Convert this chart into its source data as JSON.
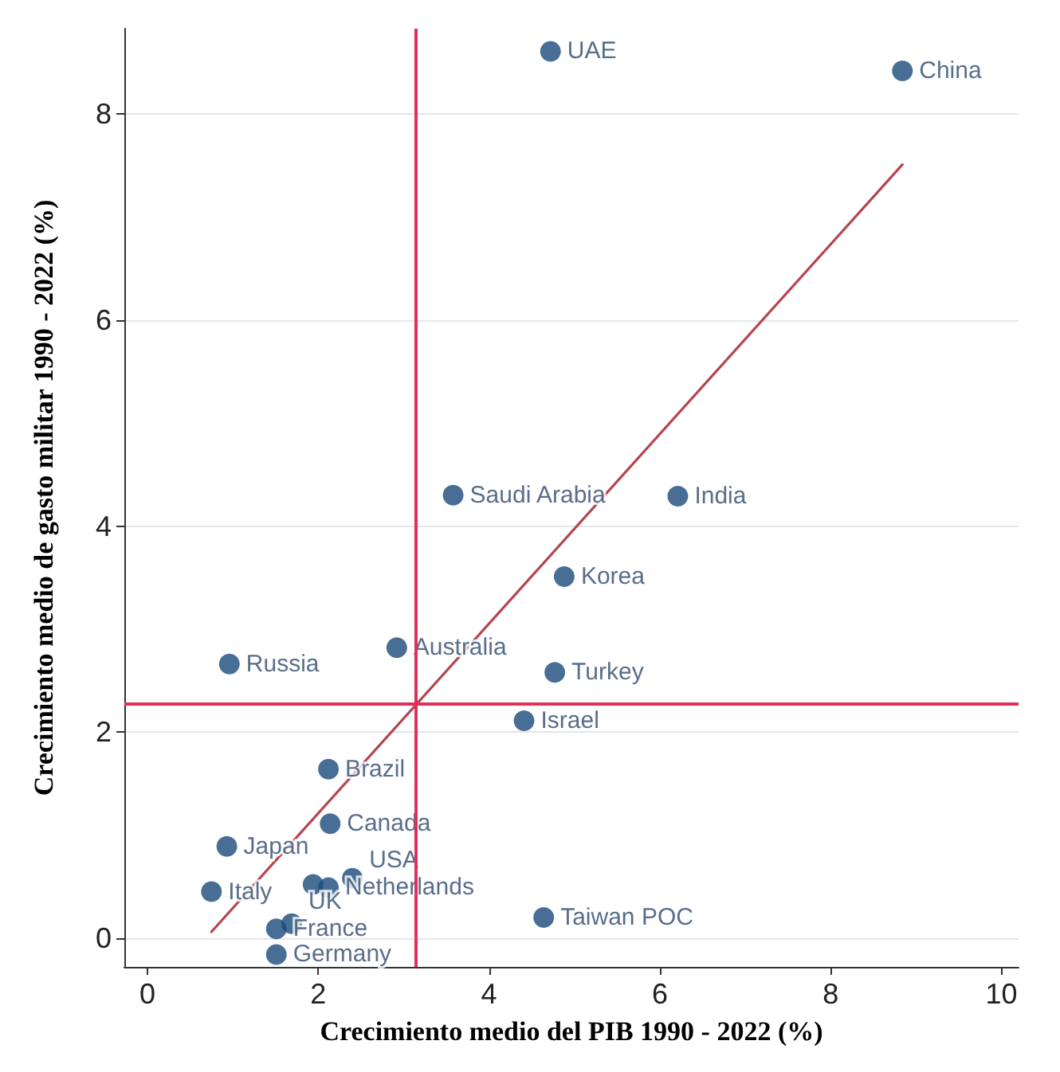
{
  "chart_data": {
    "type": "scatter",
    "xlabel": "Crecimiento medio del PIB 1990 - 2022 (%)",
    "ylabel": "Crecimiento medio de gasto militar 1990 - 2022 (%)",
    "xlim": [
      -0.27,
      10.2
    ],
    "ylim": [
      -0.28,
      8.83
    ],
    "xticks": [
      0,
      2,
      4,
      6,
      8,
      10
    ],
    "yticks": [
      0,
      2,
      4,
      6,
      8
    ],
    "grid": "y",
    "legend": false,
    "marker": "circle",
    "ref_lines": [
      {
        "axis": "x",
        "value": 3.15,
        "color": "#e0305a"
      },
      {
        "axis": "y",
        "value": 2.27,
        "color": "#e0305a"
      }
    ],
    "series": [
      {
        "name": "UAE",
        "color": "#1a4a7a",
        "x": [
          4.72
        ],
        "values": [
          8.61
        ]
      },
      {
        "name": "China",
        "color": "#1a4a7a",
        "x": [
          8.84
        ],
        "values": [
          8.42
        ]
      },
      {
        "name": "Saudi Arabia",
        "color": "#1a4a7a",
        "x": [
          3.58
        ],
        "values": [
          4.3
        ]
      },
      {
        "name": "India",
        "color": "#1a4a7a",
        "x": [
          6.21
        ],
        "values": [
          4.29
        ]
      },
      {
        "name": "Korea",
        "color": "#1a4a7a",
        "x": [
          4.88
        ],
        "values": [
          3.51
        ]
      },
      {
        "name": "Australia",
        "color": "#1a4a7a",
        "x": [
          2.92
        ],
        "values": [
          2.82
        ]
      },
      {
        "name": "Russia",
        "color": "#1a4a7a",
        "x": [
          0.96
        ],
        "values": [
          2.66
        ]
      },
      {
        "name": "Turkey",
        "color": "#1a4a7a",
        "x": [
          4.77
        ],
        "values": [
          2.58
        ]
      },
      {
        "name": "Israel",
        "color": "#1a4a7a",
        "x": [
          4.41
        ],
        "values": [
          2.11
        ]
      },
      {
        "name": "Brazil",
        "color": "#1a4a7a",
        "x": [
          2.12
        ],
        "values": [
          1.64
        ]
      },
      {
        "name": "Canada",
        "color": "#1a4a7a",
        "x": [
          2.14
        ],
        "values": [
          1.11
        ]
      },
      {
        "name": "Japan",
        "color": "#1a4a7a",
        "x": [
          0.93
        ],
        "values": [
          0.89
        ]
      },
      {
        "name": "USA",
        "color": "#1a4a7a",
        "x": [
          2.4
        ],
        "values": [
          0.58
        ]
      },
      {
        "color": "#1a4a7a",
        "x": [
          1.94
        ],
        "values": [
          0.52
        ]
      },
      {
        "name": "Netherlands",
        "color": "#1a4a7a",
        "x": [
          2.12
        ],
        "values": [
          0.49
        ]
      },
      {
        "name": "Italy",
        "color": "#1a4a7a",
        "x": [
          0.75
        ],
        "values": [
          0.45
        ]
      },
      {
        "name": "UK",
        "color": "#1a4a7a",
        "x": [
          1.69
        ],
        "values": [
          0.14
        ]
      },
      {
        "name": "France",
        "color": "#1a4a7a",
        "x": [
          1.51
        ],
        "values": [
          0.09
        ]
      },
      {
        "name": "Germany",
        "color": "#1a4a7a",
        "x": [
          1.51
        ],
        "values": [
          -0.16
        ]
      },
      {
        "name": "Taiwan POC",
        "color": "#1a4a7a",
        "x": [
          4.64
        ],
        "values": [
          0.2
        ]
      },
      {
        "type": "line",
        "color": "#b5454e",
        "marker": "none",
        "x": [
          0.75,
          8.84
        ],
        "values": [
          0.06,
          7.51
        ]
      }
    ]
  }
}
